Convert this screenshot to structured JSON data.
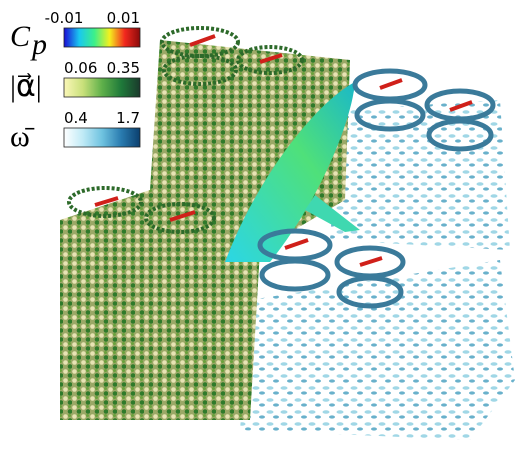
{
  "colorbars": [
    {
      "symbol": "C",
      "subscript": "p",
      "lim": [
        -0.01,
        0.01
      ],
      "colors": [
        "#1a0dd6",
        "#19c8f0",
        "#3cf08a",
        "#f4f01e",
        "#f2281e",
        "#8a0a0a"
      ]
    },
    {
      "symbol": "|α⃗|",
      "lim": [
        0.06,
        0.35
      ],
      "colors": [
        "#fbf7b8",
        "#c8e07a",
        "#5fb04a",
        "#1f7a3a",
        "#1a3a2c"
      ]
    },
    {
      "symbol": "ω̄",
      "lim": [
        0.4,
        1.7
      ],
      "colors": [
        "#ffffff",
        "#bfeaf6",
        "#6fc3e0",
        "#2a7cb0",
        "#0b3f6e"
      ]
    }
  ]
}
